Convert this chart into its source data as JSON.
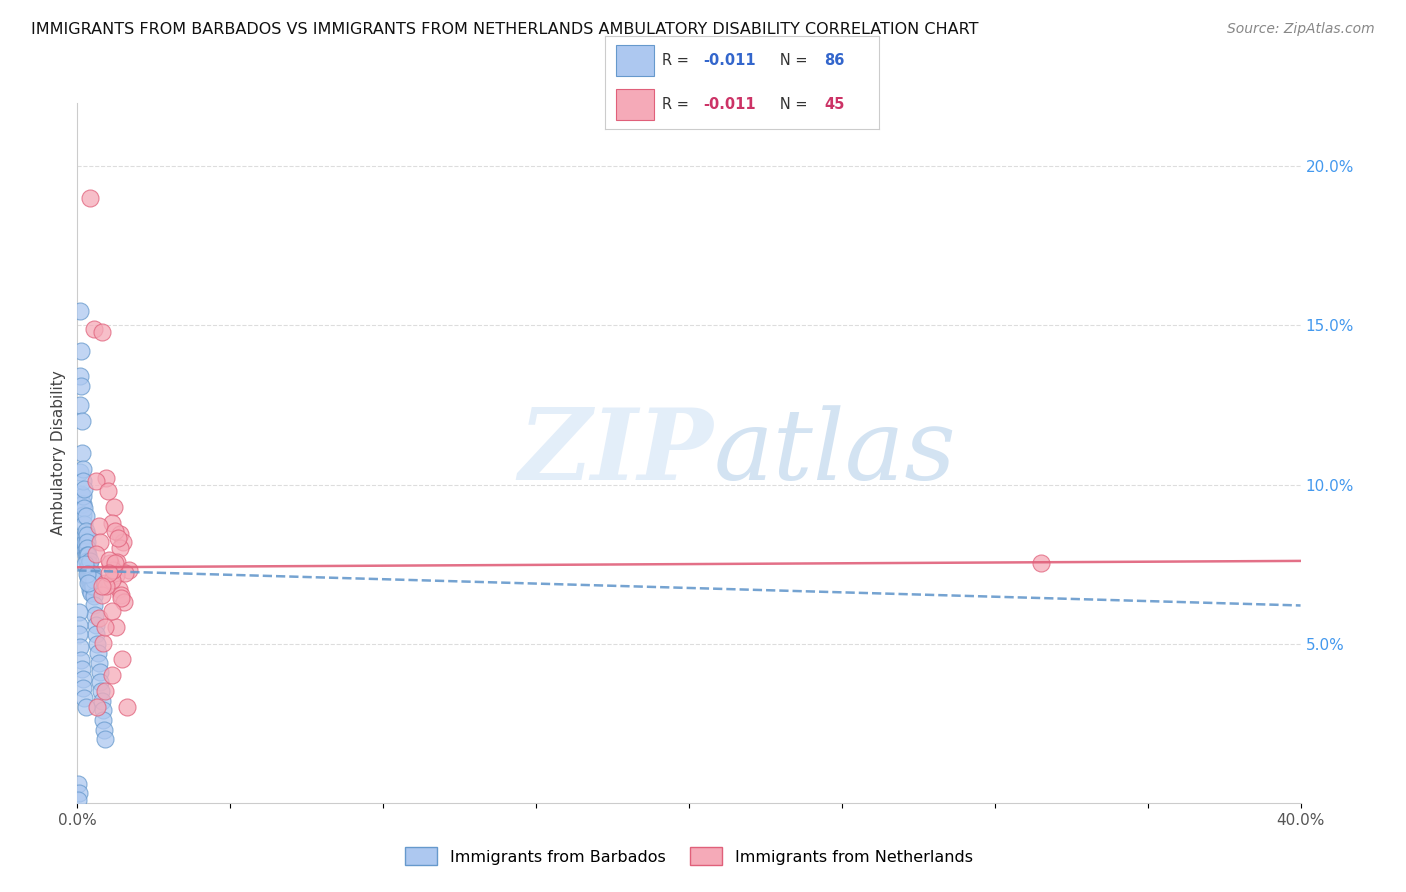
{
  "title": "IMMIGRANTS FROM BARBADOS VS IMMIGRANTS FROM NETHERLANDS AMBULATORY DISABILITY CORRELATION CHART",
  "source": "Source: ZipAtlas.com",
  "ylabel": "Ambulatory Disability",
  "xlim": [
    0.0,
    0.4
  ],
  "ylim": [
    0.0,
    0.22
  ],
  "xtick_positions": [
    0.0,
    0.05,
    0.1,
    0.15,
    0.2,
    0.25,
    0.3,
    0.35,
    0.4
  ],
  "xtick_labels": [
    "0.0%",
    "",
    "",
    "",
    "",
    "",
    "",
    "",
    "40.0%"
  ],
  "ytick_positions": [
    0.05,
    0.1,
    0.15,
    0.2
  ],
  "ytick_labels": [
    "5.0%",
    "10.0%",
    "15.0%",
    "20.0%"
  ],
  "legend1_label": "Immigrants from Barbados",
  "legend2_label": "Immigrants from Netherlands",
  "R1": "-0.011",
  "N1": 86,
  "R2": "-0.011",
  "N2": 45,
  "color_barbados_fill": "#adc8f0",
  "color_barbados_edge": "#6699cc",
  "color_netherlands_fill": "#f5aab8",
  "color_netherlands_edge": "#e0607a",
  "color_barbados_line": "#6699cc",
  "color_netherlands_line": "#e0607a",
  "background_color": "#ffffff",
  "watermark_zip": "ZIP",
  "watermark_atlas": "atlas",
  "grid_color": "#dddddd",
  "R_color_blue": "#3366cc",
  "R_color_pink": "#cc3366",
  "N_color_blue": "#3366cc",
  "N_color_pink": "#cc3366",
  "barbados_x": [
    0.0008,
    0.0008,
    0.001,
    0.001,
    0.0012,
    0.0012,
    0.0013,
    0.0015,
    0.0015,
    0.0016,
    0.0018,
    0.0018,
    0.002,
    0.002,
    0.002,
    0.0022,
    0.0022,
    0.0023,
    0.0024,
    0.0025,
    0.0025,
    0.0026,
    0.0027,
    0.0028,
    0.0028,
    0.003,
    0.003,
    0.003,
    0.0031,
    0.0032,
    0.0032,
    0.0033,
    0.0034,
    0.0035,
    0.0035,
    0.0036,
    0.0037,
    0.0038,
    0.0038,
    0.0039,
    0.004,
    0.004,
    0.0041,
    0.0042,
    0.0043,
    0.0044,
    0.0045,
    0.0046,
    0.0047,
    0.0048,
    0.005,
    0.0051,
    0.0052,
    0.0053,
    0.0055,
    0.0056,
    0.0058,
    0.006,
    0.0062,
    0.0065,
    0.0068,
    0.007,
    0.0073,
    0.0075,
    0.0078,
    0.008,
    0.0083,
    0.0085,
    0.0088,
    0.009,
    0.0005,
    0.0006,
    0.0007,
    0.0009,
    0.0011,
    0.0014,
    0.0017,
    0.0019,
    0.0021,
    0.0029,
    0.0003,
    0.0004,
    0.0002,
    0.0025,
    0.003,
    0.0035
  ],
  "barbados_y": [
    0.1545,
    0.134,
    0.125,
    0.104,
    0.131,
    0.142,
    0.097,
    0.094,
    0.12,
    0.11,
    0.094,
    0.105,
    0.0965,
    0.0905,
    0.101,
    0.0985,
    0.0925,
    0.0875,
    0.081,
    0.084,
    0.0795,
    0.082,
    0.09,
    0.0855,
    0.078,
    0.0795,
    0.0755,
    0.084,
    0.082,
    0.08,
    0.078,
    0.076,
    0.072,
    0.078,
    0.074,
    0.071,
    0.073,
    0.07,
    0.075,
    0.072,
    0.069,
    0.076,
    0.068,
    0.072,
    0.067,
    0.07,
    0.066,
    0.072,
    0.068,
    0.072,
    0.071,
    0.068,
    0.072,
    0.07,
    0.065,
    0.062,
    0.059,
    0.056,
    0.053,
    0.05,
    0.047,
    0.044,
    0.041,
    0.038,
    0.035,
    0.032,
    0.029,
    0.026,
    0.023,
    0.02,
    0.06,
    0.056,
    0.053,
    0.049,
    0.045,
    0.042,
    0.039,
    0.036,
    0.033,
    0.03,
    0.006,
    0.003,
    0.001,
    0.075,
    0.072,
    0.069
  ],
  "netherlands_x": [
    0.004,
    0.0055,
    0.008,
    0.0095,
    0.006,
    0.01,
    0.012,
    0.0115,
    0.007,
    0.014,
    0.015,
    0.014,
    0.0075,
    0.013,
    0.017,
    0.0125,
    0.009,
    0.0135,
    0.0122,
    0.0108,
    0.0155,
    0.0112,
    0.0082,
    0.0132,
    0.0062,
    0.0142,
    0.0118,
    0.0095,
    0.0152,
    0.0102,
    0.0072,
    0.0128,
    0.0085,
    0.0145,
    0.0113,
    0.0092,
    0.0162,
    0.0122,
    0.0103,
    0.0082,
    0.0142,
    0.0113,
    0.0092,
    0.315,
    0.0065
  ],
  "netherlands_y": [
    0.19,
    0.149,
    0.148,
    0.102,
    0.101,
    0.098,
    0.093,
    0.088,
    0.087,
    0.0845,
    0.082,
    0.08,
    0.082,
    0.0755,
    0.073,
    0.0715,
    0.0692,
    0.0672,
    0.0853,
    0.0753,
    0.0722,
    0.07,
    0.0652,
    0.0833,
    0.0782,
    0.0652,
    0.0732,
    0.0682,
    0.0632,
    0.0762,
    0.0582,
    0.0552,
    0.0502,
    0.0452,
    0.0402,
    0.0352,
    0.0302,
    0.0752,
    0.0722,
    0.0682,
    0.0642,
    0.0602,
    0.0552,
    0.0752,
    0.0302
  ],
  "barb_line_x": [
    0.0,
    0.4
  ],
  "barb_line_y_start": 0.073,
  "barb_line_y_end": 0.062,
  "neth_line_x": [
    0.0,
    0.4
  ],
  "neth_line_y_start": 0.074,
  "neth_line_y_end": 0.076
}
